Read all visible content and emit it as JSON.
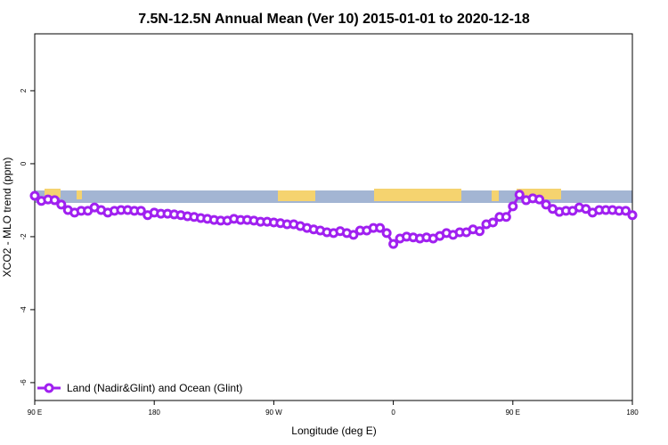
{
  "chart_data": {
    "type": "line",
    "title": "7.5N-12.5N Annual Mean (Ver 10)   2015-01-01 to 2020-12-18",
    "xlabel": "Longitude (deg E)",
    "ylabel": "XCO2 - MLO trend (ppm)",
    "xlim": [
      90,
      540
    ],
    "ylim": [
      -6.49,
      3.56
    ],
    "xticks": [
      {
        "value": 90,
        "label": "90 E"
      },
      180,
      {
        "value": 270,
        "label": "90 W"
      },
      {
        "value": 360,
        "label": "0"
      },
      {
        "value": 450,
        "label": "90 E"
      },
      {
        "value": 540,
        "label": "180"
      }
    ],
    "yticks": [
      -6,
      -4,
      -2,
      0,
      2
    ],
    "x": [
      90,
      95,
      100,
      105,
      110,
      115,
      120,
      125,
      130,
      135,
      140,
      145,
      150,
      155,
      160,
      165,
      170,
      175,
      180,
      185,
      190,
      195,
      200,
      205,
      210,
      215,
      220,
      225,
      230,
      235,
      240,
      245,
      250,
      255,
      260,
      265,
      270,
      275,
      280,
      285,
      290,
      295,
      300,
      305,
      310,
      315,
      320,
      325,
      330,
      335,
      340,
      345,
      350,
      355,
      360,
      365,
      370,
      375,
      380,
      385,
      390,
      395,
      400,
      405,
      410,
      415,
      420,
      425,
      430,
      435,
      440,
      445,
      450,
      455,
      460,
      465,
      470,
      475,
      480,
      485,
      490,
      495,
      500,
      505,
      510,
      515,
      520,
      525,
      530,
      535,
      540
    ],
    "series": [
      {
        "name": "Land (Nadir&Glint) and Ocean (Glint)",
        "color": "#a020f0",
        "values": [
          -0.88,
          -1.02,
          -0.98,
          -1.0,
          -1.12,
          -1.27,
          -1.34,
          -1.29,
          -1.29,
          -1.2,
          -1.27,
          -1.34,
          -1.29,
          -1.27,
          -1.27,
          -1.29,
          -1.29,
          -1.41,
          -1.34,
          -1.37,
          -1.37,
          -1.39,
          -1.41,
          -1.44,
          -1.46,
          -1.49,
          -1.51,
          -1.54,
          -1.56,
          -1.56,
          -1.51,
          -1.54,
          -1.54,
          -1.56,
          -1.59,
          -1.59,
          -1.61,
          -1.63,
          -1.66,
          -1.66,
          -1.71,
          -1.76,
          -1.8,
          -1.83,
          -1.88,
          -1.9,
          -1.85,
          -1.9,
          -1.95,
          -1.83,
          -1.83,
          -1.76,
          -1.76,
          -1.9,
          -2.2,
          -2.05,
          -2.0,
          -2.02,
          -2.05,
          -2.02,
          -2.05,
          -1.98,
          -1.9,
          -1.95,
          -1.88,
          -1.88,
          -1.8,
          -1.85,
          -1.66,
          -1.61,
          -1.46,
          -1.46,
          -1.17,
          -0.85,
          -1.0,
          -0.95,
          -0.98,
          -1.12,
          -1.24,
          -1.32,
          -1.29,
          -1.29,
          -1.2,
          -1.24,
          -1.34,
          -1.27,
          -1.27,
          -1.27,
          -1.29,
          -1.29,
          -1.41
        ]
      }
    ]
  }
}
